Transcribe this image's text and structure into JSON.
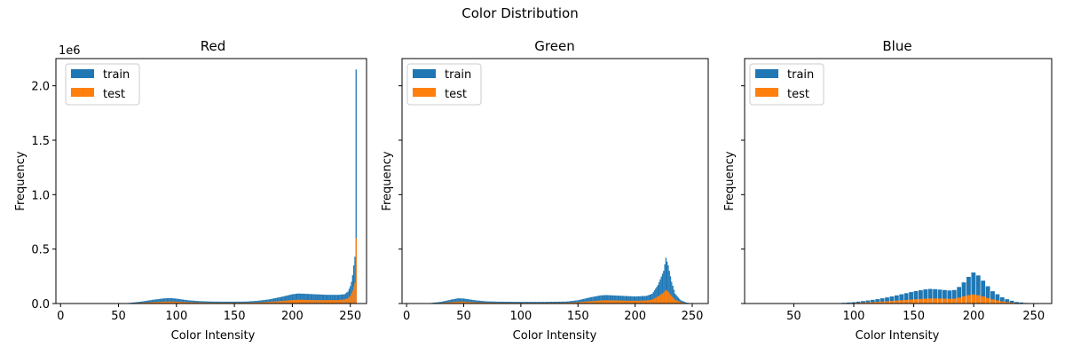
{
  "figure": {
    "title": "Color Distribution"
  },
  "colors": {
    "train": "#1f77b4",
    "test": "#ff7f0e"
  },
  "chart_data": [
    {
      "type": "bar",
      "title": "Red",
      "xlabel": "Color Intensity",
      "ylabel": "Frequency",
      "y_scale_label": "1e6",
      "xlim": [
        -4,
        264
      ],
      "ylim": [
        0,
        2250000
      ],
      "xticks": [
        "0",
        "50",
        "100",
        "150",
        "200",
        "250"
      ],
      "xtick_values": [
        0,
        50,
        100,
        150,
        200,
        250
      ],
      "yticks": [
        "0.0",
        "0.5",
        "1.0",
        "1.5",
        "2.0"
      ],
      "ytick_values": [
        0,
        500000,
        1000000,
        1500000,
        2000000
      ],
      "legend": {
        "placement": "upper-left",
        "entries": [
          "train",
          "test"
        ]
      },
      "stacked": true,
      "bin_width": 1,
      "series": [
        {
          "name": "train",
          "profile": [
            [
              0,
              0
            ],
            [
              50,
              0
            ],
            [
              55,
              2000
            ],
            [
              60,
              6000
            ],
            [
              70,
              18000
            ],
            [
              80,
              35000
            ],
            [
              90,
              48000
            ],
            [
              95,
              50000
            ],
            [
              100,
              45000
            ],
            [
              110,
              30000
            ],
            [
              120,
              22000
            ],
            [
              130,
              18000
            ],
            [
              140,
              17000
            ],
            [
              150,
              17000
            ],
            [
              160,
              18000
            ],
            [
              170,
              25000
            ],
            [
              180,
              38000
            ],
            [
              190,
              60000
            ],
            [
              200,
              85000
            ],
            [
              205,
              92000
            ],
            [
              210,
              90000
            ],
            [
              220,
              85000
            ],
            [
              230,
              80000
            ],
            [
              240,
              80000
            ],
            [
              245,
              85000
            ],
            [
              248,
              110000
            ],
            [
              250,
              160000
            ],
            [
              251,
              200000
            ],
            [
              252,
              260000
            ],
            [
              253,
              350000
            ],
            [
              254,
              430000
            ],
            [
              255,
              2150000
            ]
          ]
        },
        {
          "name": "test",
          "profile": [
            [
              0,
              0
            ],
            [
              50,
              0
            ],
            [
              55,
              800
            ],
            [
              60,
              2500
            ],
            [
              70,
              7000
            ],
            [
              80,
              13000
            ],
            [
              90,
              18000
            ],
            [
              95,
              19000
            ],
            [
              100,
              17000
            ],
            [
              110,
              12000
            ],
            [
              120,
              9000
            ],
            [
              130,
              7500
            ],
            [
              140,
              7000
            ],
            [
              150,
              7000
            ],
            [
              160,
              7500
            ],
            [
              170,
              10000
            ],
            [
              180,
              15000
            ],
            [
              190,
              23000
            ],
            [
              200,
              32000
            ],
            [
              205,
              35000
            ],
            [
              210,
              34000
            ],
            [
              220,
              32000
            ],
            [
              230,
              31000
            ],
            [
              240,
              32000
            ],
            [
              245,
              38000
            ],
            [
              248,
              48000
            ],
            [
              250,
              70000
            ],
            [
              251,
              90000
            ],
            [
              252,
              120000
            ],
            [
              253,
              160000
            ],
            [
              254,
              190000
            ],
            [
              255,
              600000
            ]
          ]
        }
      ]
    },
    {
      "type": "bar",
      "title": "Green",
      "xlabel": "Color Intensity",
      "ylabel": "Frequency",
      "xlim": [
        -4,
        264
      ],
      "ylim": [
        0,
        2250000
      ],
      "xticks": [
        "0",
        "50",
        "100",
        "150",
        "200",
        "250"
      ],
      "xtick_values": [
        0,
        50,
        100,
        150,
        200,
        250
      ],
      "legend": {
        "placement": "upper-left",
        "entries": [
          "train",
          "test"
        ]
      },
      "stacked": true,
      "bin_width": 1,
      "series": [
        {
          "name": "train",
          "profile": [
            [
              0,
              0
            ],
            [
              15,
              0
            ],
            [
              20,
              3000
            ],
            [
              30,
              15000
            ],
            [
              40,
              38000
            ],
            [
              45,
              48000
            ],
            [
              50,
              46000
            ],
            [
              60,
              30000
            ],
            [
              70,
              20000
            ],
            [
              80,
              17000
            ],
            [
              100,
              15000
            ],
            [
              120,
              15000
            ],
            [
              140,
              18000
            ],
            [
              150,
              30000
            ],
            [
              160,
              55000
            ],
            [
              170,
              75000
            ],
            [
              175,
              78000
            ],
            [
              180,
              75000
            ],
            [
              190,
              70000
            ],
            [
              200,
              65000
            ],
            [
              210,
              70000
            ],
            [
              215,
              90000
            ],
            [
              220,
              170000
            ],
            [
              225,
              300000
            ],
            [
              227,
              420000
            ],
            [
              229,
              350000
            ],
            [
              232,
              200000
            ],
            [
              235,
              90000
            ],
            [
              240,
              30000
            ],
            [
              245,
              8000
            ],
            [
              250,
              1000
            ],
            [
              255,
              0
            ]
          ]
        },
        {
          "name": "test",
          "profile": [
            [
              0,
              0
            ],
            [
              15,
              0
            ],
            [
              20,
              1000
            ],
            [
              30,
              6000
            ],
            [
              40,
              14000
            ],
            [
              45,
              18000
            ],
            [
              50,
              17000
            ],
            [
              60,
              11000
            ],
            [
              70,
              8000
            ],
            [
              80,
              7000
            ],
            [
              100,
              6000
            ],
            [
              120,
              6000
            ],
            [
              140,
              7000
            ],
            [
              150,
              12000
            ],
            [
              160,
              21000
            ],
            [
              170,
              28000
            ],
            [
              175,
              30000
            ],
            [
              180,
              29000
            ],
            [
              190,
              27000
            ],
            [
              200,
              25000
            ],
            [
              210,
              28000
            ],
            [
              215,
              36000
            ],
            [
              220,
              65000
            ],
            [
              225,
              100000
            ],
            [
              227,
              125000
            ],
            [
              229,
              110000
            ],
            [
              232,
              70000
            ],
            [
              235,
              35000
            ],
            [
              240,
              12000
            ],
            [
              245,
              3000
            ],
            [
              250,
              400
            ],
            [
              255,
              0
            ]
          ]
        }
      ]
    },
    {
      "type": "bar",
      "title": "Blue",
      "xlabel": "Color Intensity",
      "ylabel": "Frequency",
      "xlim": [
        9,
        265
      ],
      "ylim": [
        0,
        2250000
      ],
      "xticks": [
        "50",
        "100",
        "150",
        "200",
        "250"
      ],
      "xtick_values": [
        50,
        100,
        150,
        200,
        250
      ],
      "legend": {
        "placement": "upper-left",
        "entries": [
          "train",
          "test"
        ]
      },
      "stacked": true,
      "bin_width": 4,
      "series": [
        {
          "name": "train",
          "profile": [
            [
              20,
              0
            ],
            [
              80,
              0
            ],
            [
              90,
              5000
            ],
            [
              100,
              12000
            ],
            [
              110,
              25000
            ],
            [
              120,
              40000
            ],
            [
              130,
              60000
            ],
            [
              140,
              85000
            ],
            [
              150,
              110000
            ],
            [
              160,
              130000
            ],
            [
              165,
              135000
            ],
            [
              170,
              130000
            ],
            [
              180,
              120000
            ],
            [
              185,
              125000
            ],
            [
              190,
              170000
            ],
            [
              195,
              230000
            ],
            [
              199,
              290000
            ],
            [
              203,
              270000
            ],
            [
              208,
              210000
            ],
            [
              215,
              120000
            ],
            [
              225,
              50000
            ],
            [
              235,
              15000
            ],
            [
              245,
              4000
            ],
            [
              252,
              0
            ]
          ]
        },
        {
          "name": "test",
          "profile": [
            [
              20,
              0
            ],
            [
              80,
              0
            ],
            [
              90,
              2000
            ],
            [
              100,
              5000
            ],
            [
              110,
              10000
            ],
            [
              120,
              15000
            ],
            [
              130,
              22000
            ],
            [
              140,
              30000
            ],
            [
              150,
              38000
            ],
            [
              160,
              45000
            ],
            [
              165,
              47000
            ],
            [
              170,
              46000
            ],
            [
              180,
              43000
            ],
            [
              185,
              45000
            ],
            [
              190,
              60000
            ],
            [
              195,
              75000
            ],
            [
              199,
              85000
            ],
            [
              203,
              80000
            ],
            [
              208,
              65000
            ],
            [
              215,
              40000
            ],
            [
              225,
              17000
            ],
            [
              235,
              5000
            ],
            [
              245,
              1500
            ],
            [
              252,
              0
            ]
          ]
        }
      ]
    }
  ]
}
